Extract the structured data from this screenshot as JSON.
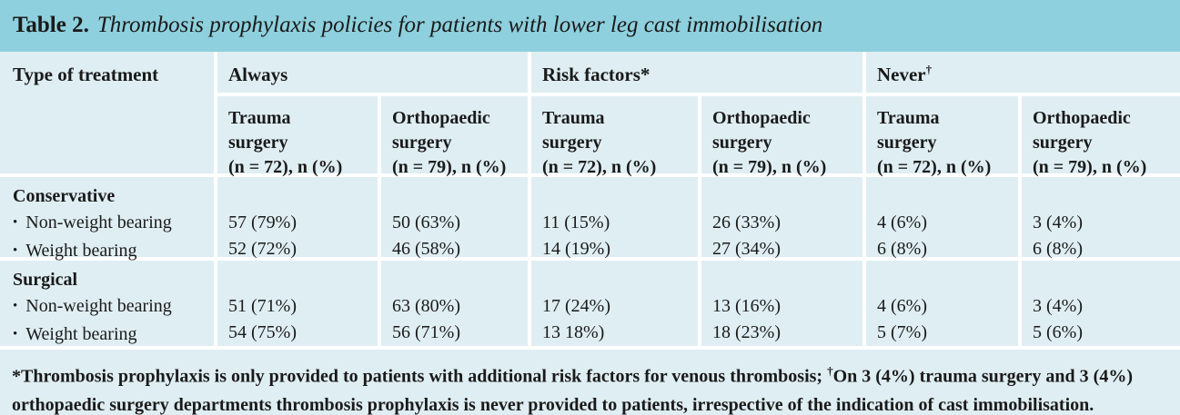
{
  "title": {
    "prefix": "Table 2.",
    "text": "Thrombosis prophylaxis policies for patients with lower leg cast immobilisation"
  },
  "colors": {
    "title_bar_background": "#8ed0dd",
    "cell_background": "#dfeef3",
    "divider": "#ffffff",
    "text": "#1a1a1a"
  },
  "table": {
    "bullet": "•",
    "row_header": "Type of treatment",
    "groups": [
      {
        "label": "Always",
        "sup": ""
      },
      {
        "label": "Risk factors*",
        "sup": ""
      },
      {
        "label": "Never",
        "sup": "†"
      }
    ],
    "subcolumns": [
      {
        "lines": [
          "Trauma",
          "surgery",
          "(n = 72), n (%)"
        ]
      },
      {
        "lines": [
          "Orthopaedic",
          "surgery",
          "(n = 79), n (%)"
        ]
      },
      {
        "lines": [
          "Trauma",
          "surgery",
          "(n = 72), n (%)"
        ]
      },
      {
        "lines": [
          "Orthopaedic",
          "surgery",
          "(n = 79), n (%)"
        ]
      },
      {
        "lines": [
          "Trauma",
          "surgery",
          "(n = 72), n (%)"
        ]
      },
      {
        "lines": [
          "Orthopaedic",
          "surgery",
          "(n = 79), n (%)"
        ]
      }
    ],
    "sections": [
      {
        "name": "Conservative",
        "rows": [
          {
            "label": "Non-weight bearing",
            "values": [
              "57 (79%)",
              "50 (63%)",
              "11 (15%)",
              "26 (33%)",
              "4 (6%)",
              "3 (4%)"
            ]
          },
          {
            "label": "Weight bearing",
            "values": [
              "52 (72%)",
              "46 (58%)",
              "14 (19%)",
              "27 (34%)",
              "6 (8%)",
              "6 (8%)"
            ]
          }
        ]
      },
      {
        "name": "Surgical",
        "rows": [
          {
            "label": "Non-weight bearing",
            "values": [
              "51 (71%)",
              "63 (80%)",
              "17 (24%)",
              "13 (16%)",
              "4 (6%)",
              "3 (4%)"
            ]
          },
          {
            "label": "Weight bearing",
            "values": [
              "54 (75%)",
              "56 (71%)",
              "13 18%)",
              "18 (23%)",
              "5 (7%)",
              "5 (6%)"
            ]
          }
        ]
      }
    ],
    "footnote": {
      "part1": "*Thrombosis prophylaxis is only provided to patients with additional risk factors for venous thrombosis; ",
      "dagger": "†",
      "part2": "On 3 (4%) trauma surgery and 3 (4%) orthopaedic surgery departments thrombosis prophylaxis is never provided to patients, irrespective of the indication of cast immobilisation."
    }
  }
}
